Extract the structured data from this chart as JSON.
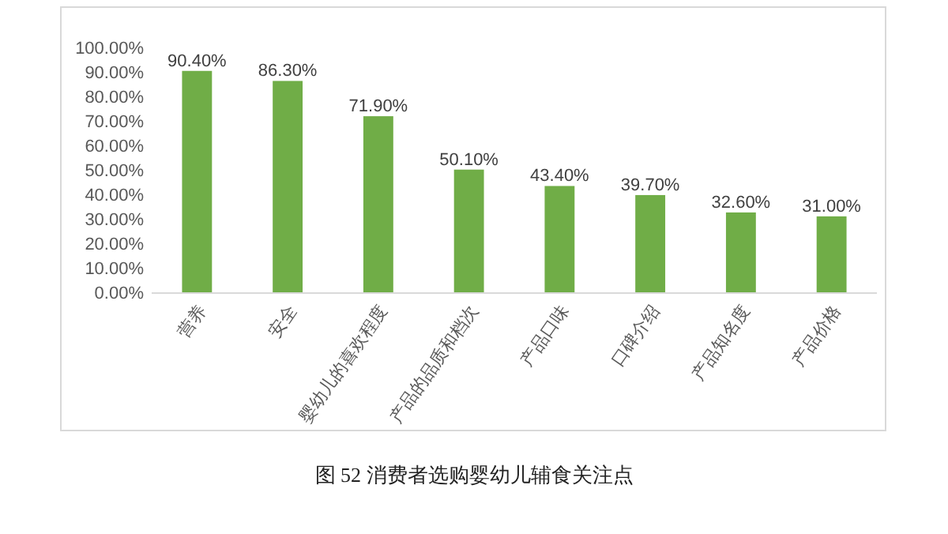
{
  "chart_data": {
    "type": "bar",
    "title": "图 52  消费者选购婴幼儿辅食关注点",
    "categories": [
      "营养",
      "安全",
      "婴幼儿的喜欢程度",
      "产品的品质和档次",
      "产品口味",
      "口碑介绍",
      "产品知名度",
      "产品价格"
    ],
    "values": [
      90.4,
      86.3,
      71.9,
      50.1,
      43.4,
      39.7,
      32.6,
      31.0
    ],
    "value_labels": [
      "90.40%",
      "86.30%",
      "71.90%",
      "50.10%",
      "43.40%",
      "39.70%",
      "32.60%",
      "31.00%"
    ],
    "color": "#70ad47",
    "ylim": [
      0,
      100
    ],
    "yticks": [
      {
        "value": 0,
        "label": "0.00%"
      },
      {
        "value": 10,
        "label": "10.00%"
      },
      {
        "value": 20,
        "label": "20.00%"
      },
      {
        "value": 30,
        "label": "30.00%"
      },
      {
        "value": 40,
        "label": "40.00%"
      },
      {
        "value": 50,
        "label": "50.00%"
      },
      {
        "value": 60,
        "label": "60.00%"
      },
      {
        "value": 70,
        "label": "70.00%"
      },
      {
        "value": 80,
        "label": "80.00%"
      },
      {
        "value": 90,
        "label": "90.00%"
      },
      {
        "value": 100,
        "label": "100.00%"
      }
    ],
    "grid": false
  }
}
